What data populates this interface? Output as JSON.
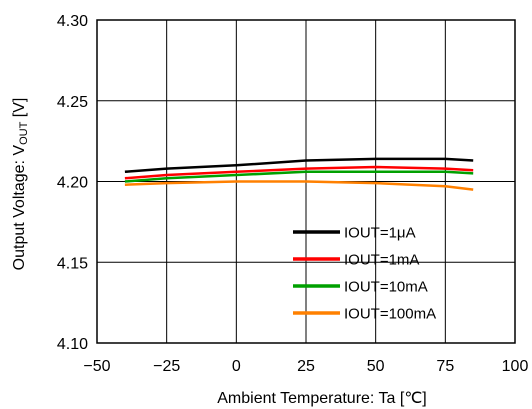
{
  "chart_data": {
    "type": "line",
    "xlabel": "Ambient Temperature: Ta [℃]",
    "ylabel_main": "Output Voltage: V",
    "ylabel_sub": "OUT",
    "ylabel_unit": " [V]",
    "xlim": [
      -50,
      100
    ],
    "ylim": [
      4.1,
      4.3
    ],
    "x_ticks": [
      "−50",
      "−25",
      "0",
      "25",
      "50",
      "75",
      "100"
    ],
    "x_tick_values": [
      -50,
      -25,
      0,
      25,
      50,
      75,
      100
    ],
    "y_ticks": [
      "4.10",
      "4.15",
      "4.20",
      "4.25",
      "4.30"
    ],
    "y_tick_values": [
      4.1,
      4.15,
      4.2,
      4.25,
      4.3
    ],
    "grid": true,
    "legend_position": "bottom-right",
    "x": [
      -40,
      -25,
      0,
      25,
      50,
      75,
      85
    ],
    "series": [
      {
        "name": "IOUT=1μA",
        "color": "#000000",
        "values": [
          4.206,
          4.208,
          4.21,
          4.213,
          4.214,
          4.214,
          4.213
        ]
      },
      {
        "name": "IOUT=1mA",
        "color": "#ff0000",
        "values": [
          4.202,
          4.204,
          4.206,
          4.208,
          4.209,
          4.208,
          4.207
        ]
      },
      {
        "name": "IOUT=10mA",
        "color": "#00a000",
        "values": [
          4.2,
          4.202,
          4.204,
          4.206,
          4.206,
          4.206,
          4.205
        ]
      },
      {
        "name": "IOUT=100mA",
        "color": "#ff8000",
        "values": [
          4.198,
          4.199,
          4.2,
          4.2,
          4.199,
          4.197,
          4.195
        ]
      }
    ]
  }
}
